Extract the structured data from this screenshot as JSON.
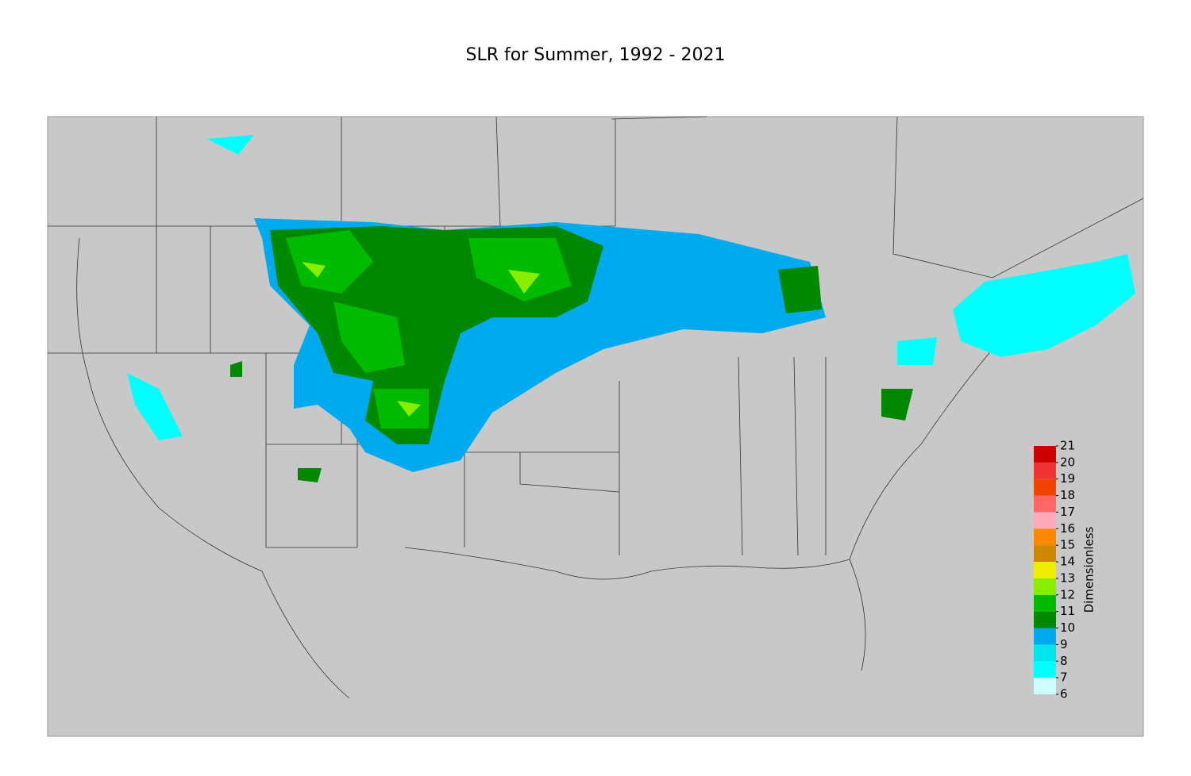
{
  "title": "SLR for Summer, 1992 - 2021",
  "colorbar": {
    "label": "Dimensionless",
    "ticks": [
      6,
      7,
      8,
      9,
      10,
      11,
      12,
      13,
      14,
      15,
      16,
      17,
      18,
      19,
      20,
      21
    ],
    "colors": [
      "#ccffff",
      "#00ffff",
      "#00e4ec",
      "#00aaee",
      "#008800",
      "#00bb00",
      "#88ee00",
      "#eeee00",
      "#cc8800",
      "#ff8800",
      "#ffaabb",
      "#ff6666",
      "#ee4400",
      "#ee3333",
      "#cc0000"
    ]
  }
}
